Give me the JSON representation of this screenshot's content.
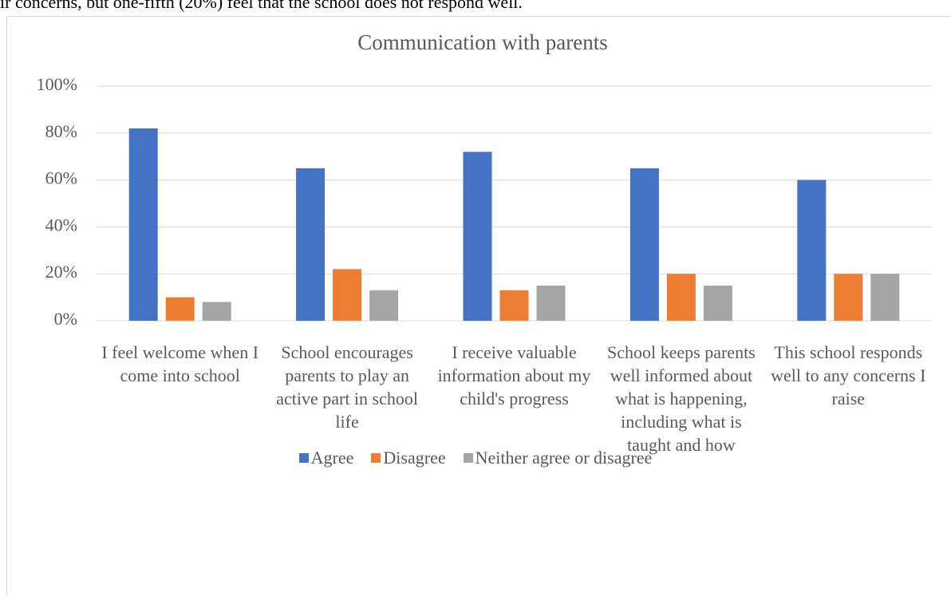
{
  "text": "ir concerns, but one-fifth (20%) feel that the school does not respond well.",
  "chart_data": {
    "type": "bar",
    "title": "Communication with parents",
    "categories": [
      "I feel welcome when I come into school",
      "School encourages parents to play an active part in school life",
      "I receive valuable information about my child's progress",
      "School keeps parents well informed about what is happening, including what is taught and how",
      "This school responds well to any concerns I raise"
    ],
    "series": [
      {
        "name": "Agree",
        "color": "#4472c4",
        "values": [
          82,
          65,
          72,
          65,
          60
        ]
      },
      {
        "name": "Disagree",
        "color": "#ed7d31",
        "values": [
          10,
          22,
          13,
          20,
          20
        ]
      },
      {
        "name": "Neither agree or disagree",
        "color": "#a5a5a5",
        "values": [
          8,
          13,
          15,
          15,
          20
        ]
      }
    ],
    "ylim": [
      0,
      100
    ],
    "yticks": [
      {
        "value": 0,
        "label": "0%"
      },
      {
        "value": 20,
        "label": "20%"
      },
      {
        "value": 40,
        "label": "40%"
      },
      {
        "value": 60,
        "label": "60%"
      },
      {
        "value": 80,
        "label": "80%"
      },
      {
        "value": 100,
        "label": "100%"
      }
    ],
    "grid": true,
    "legend": "bottom"
  }
}
